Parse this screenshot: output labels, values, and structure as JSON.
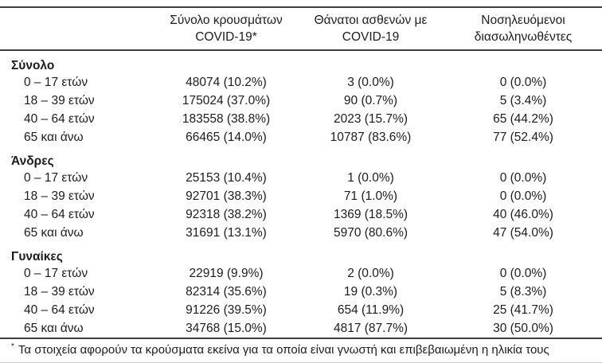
{
  "table": {
    "col_headers": [
      {
        "line1": "Σύνολο κρουσμάτων",
        "line2": "COVID-19*"
      },
      {
        "line1": "Θάνατοι ασθενών με",
        "line2": "COVID-19"
      },
      {
        "line1": "Νοσηλευόμενοι",
        "line2": "διασωληνωθέντες"
      }
    ],
    "sections": [
      {
        "label": "Σύνολο",
        "rows": [
          {
            "label": "0 – 17 ετών",
            "cases": "48074 (10.2%)",
            "deaths": "3 (0.0%)",
            "intubated": "0 (0.0%)"
          },
          {
            "label": "18 – 39 ετών",
            "cases": "175024 (37.0%)",
            "deaths": "90 (0.7%)",
            "intubated": "5 (3.4%)"
          },
          {
            "label": "40 – 64 ετών",
            "cases": "183558 (38.8%)",
            "deaths": "2023 (15.7%)",
            "intubated": "65 (44.2%)"
          },
          {
            "label": "65 και άνω",
            "cases": "66465 (14.0%)",
            "deaths": "10787 (83.6%)",
            "intubated": "77 (52.4%)"
          }
        ]
      },
      {
        "label": "Άνδρες",
        "rows": [
          {
            "label": "0 – 17 ετών",
            "cases": "25153 (10.4%)",
            "deaths": "1 (0.0%)",
            "intubated": "0 (0.0%)"
          },
          {
            "label": "18 – 39 ετών",
            "cases": "92701 (38.3%)",
            "deaths": "71 (1.0%)",
            "intubated": "0 (0.0%)"
          },
          {
            "label": "40 – 64 ετών",
            "cases": "92318 (38.2%)",
            "deaths": "1369 (18.5%)",
            "intubated": "40 (46.0%)"
          },
          {
            "label": "65 και άνω",
            "cases": "31691 (13.1%)",
            "deaths": "5970 (80.6%)",
            "intubated": "47 (54.0%)"
          }
        ]
      },
      {
        "label": "Γυναίκες",
        "rows": [
          {
            "label": "0 – 17 ετών",
            "cases": "22919 (9.9%)",
            "deaths": "2 (0.0%)",
            "intubated": "0 (0.0%)"
          },
          {
            "label": "18 – 39 ετών",
            "cases": "82314 (35.6%)",
            "deaths": "19 (0.3%)",
            "intubated": "5 (8.3%)"
          },
          {
            "label": "40 – 64 ετών",
            "cases": "91226 (39.5%)",
            "deaths": "654 (11.9%)",
            "intubated": "25 (41.7%)"
          },
          {
            "label": "65 και άνω",
            "cases": "34768 (15.0%)",
            "deaths": "4817 (87.7%)",
            "intubated": "30 (50.0%)"
          }
        ]
      }
    ]
  },
  "footnote": {
    "marker": "*",
    "text": "Τα στοιχεία αφορούν τα κρούσματα εκείνα για τα οποία είναι γνωστή και επιβεβαιωμένη η ηλικία τους"
  },
  "colors": {
    "rule": "#3d3d3d",
    "text": "#1c1c1c",
    "faint_bottom_edge": "#c9c9c9",
    "background": "#ffffff"
  }
}
